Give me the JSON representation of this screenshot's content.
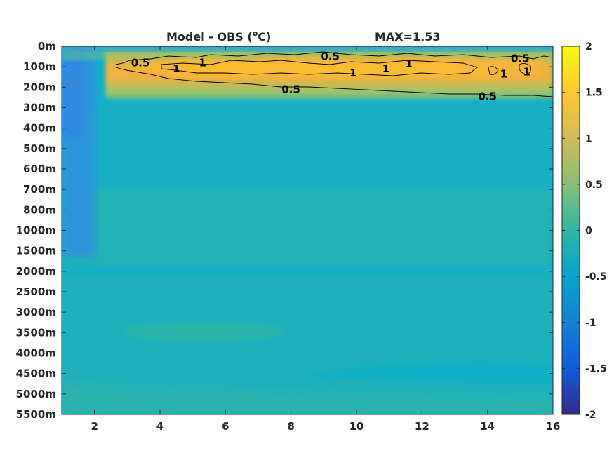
{
  "chart_data": {
    "type": "heatmap",
    "title": "Model - OBS (°C)",
    "title_main": "Model - OBS (",
    "title_unit_sup": "o",
    "title_unit_tail": "C)",
    "max_label": "MAX=1.53",
    "x_ticks": [
      2,
      4,
      6,
      8,
      10,
      12,
      14,
      16
    ],
    "x_range": [
      1,
      16
    ],
    "y_tick_labels": [
      "0m",
      "100m",
      "200m",
      "300m",
      "400m",
      "500m",
      "600m",
      "700m",
      "800m",
      "1000m",
      "1500m",
      "2000m",
      "2500m",
      "3000m",
      "3500m",
      "4000m",
      "4500m",
      "5000m",
      "5500m"
    ],
    "colorbar": {
      "range": [
        -2,
        2
      ],
      "ticks": [
        2,
        1.5,
        1,
        0.5,
        0,
        -0.5,
        -1,
        -1.5,
        -2
      ],
      "tick_labels": [
        "2",
        "1.5",
        "1",
        "0.5",
        "0",
        "-0.5",
        "-1",
        "-1.5",
        "-2"
      ],
      "colormap": "parula"
    },
    "contour_levels": [
      0.5,
      1
    ],
    "contour_labels": [
      {
        "text": "0.5",
        "x": 3.4,
        "y": 0.8
      },
      {
        "text": "1",
        "x": 4.5,
        "y": 1.1
      },
      {
        "text": "1",
        "x": 5.3,
        "y": 0.8
      },
      {
        "text": "0.5",
        "x": 8.0,
        "y": 2.1
      },
      {
        "text": "0.5",
        "x": 9.2,
        "y": 0.5
      },
      {
        "text": "1",
        "x": 9.9,
        "y": 1.3
      },
      {
        "text": "1",
        "x": 10.9,
        "y": 1.1
      },
      {
        "text": "1",
        "x": 11.6,
        "y": 0.85
      },
      {
        "text": "0.5",
        "x": 14.0,
        "y": 2.45
      },
      {
        "text": "0.5",
        "x": 15.0,
        "y": 0.6
      },
      {
        "text": "1",
        "x": 14.5,
        "y": 1.35
      },
      {
        "text": "1",
        "x": 15.2,
        "y": 1.25
      }
    ]
  }
}
